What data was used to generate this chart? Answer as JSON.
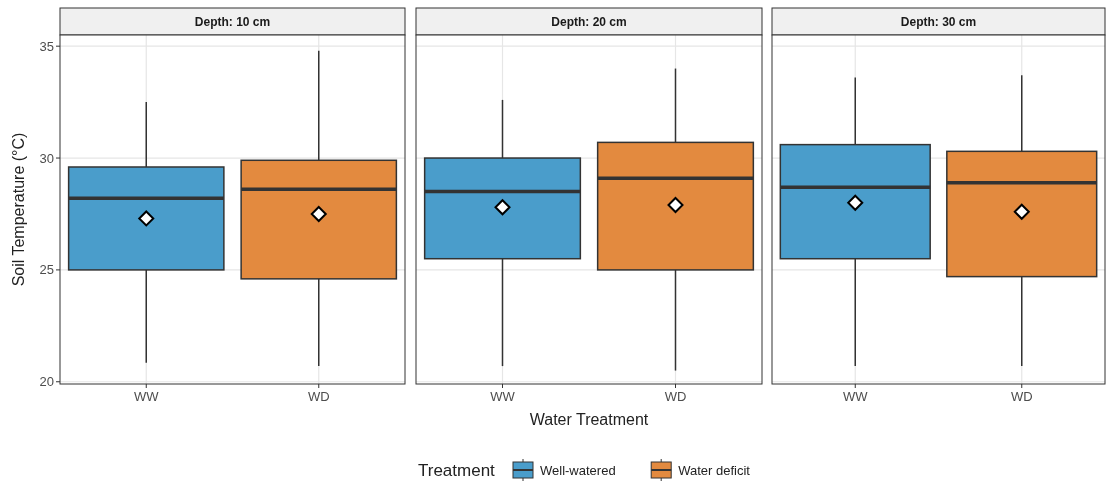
{
  "chart_data": [
    {
      "type": "box",
      "title": "Depth: 10 cm",
      "ylabel": "Soil Temperature (°C)",
      "categories": [
        "WW",
        "WD"
      ],
      "ylim": [
        19.9,
        35.5
      ],
      "yticks": [
        20,
        25,
        30,
        35
      ],
      "grid": true,
      "marker": "diamond",
      "series": [
        {
          "color": "#4a9dcb",
          "boxes": [
            {
              "low": 20.85,
              "q1": 25.0,
              "median": 28.2,
              "q3": 29.6,
              "high": 32.5,
              "mean": 27.3
            },
            null
          ]
        },
        {
          "color": "#e38a3f",
          "boxes": [
            null,
            {
              "low": 20.7,
              "q1": 24.6,
              "median": 28.6,
              "q3": 29.9,
              "high": 34.8,
              "mean": 27.5
            }
          ]
        }
      ]
    },
    {
      "type": "box",
      "title": "Depth: 20 cm",
      "xlabel": "Water Treatment",
      "legend_title": "Treatment",
      "legend": "bottom",
      "categories": [
        "WW",
        "WD"
      ],
      "ylim": [
        19.9,
        35.5
      ],
      "yticks": [
        20,
        25,
        30,
        35
      ],
      "tick_labels": "x",
      "grid": true,
      "marker": "diamond",
      "series": [
        {
          "name": "Well-watered",
          "color": "#4a9dcb",
          "boxes": [
            {
              "low": 20.7,
              "q1": 25.5,
              "median": 28.5,
              "q3": 30.0,
              "high": 32.6,
              "mean": 27.8
            },
            null
          ]
        },
        {
          "name": "Water deficit",
          "color": "#e38a3f",
          "boxes": [
            null,
            {
              "low": 20.5,
              "q1": 25.0,
              "median": 29.1,
              "q3": 30.7,
              "high": 34.0,
              "mean": 27.9
            }
          ]
        }
      ]
    },
    {
      "type": "box",
      "title": "Depth: 30 cm",
      "categories": [
        "WW",
        "WD"
      ],
      "ylim": [
        19.9,
        35.5
      ],
      "yticks": [
        20,
        25,
        30,
        35
      ],
      "tick_labels": "x",
      "grid": true,
      "marker": "diamond",
      "series": [
        {
          "color": "#4a9dcb",
          "boxes": [
            {
              "low": 20.7,
              "q1": 25.5,
              "median": 28.7,
              "q3": 30.6,
              "high": 33.6,
              "mean": 28.0
            },
            null
          ]
        },
        {
          "color": "#e38a3f",
          "boxes": [
            null,
            {
              "low": 20.7,
              "q1": 24.7,
              "median": 28.9,
              "q3": 30.3,
              "high": 33.7,
              "mean": 27.6
            }
          ]
        }
      ]
    }
  ]
}
